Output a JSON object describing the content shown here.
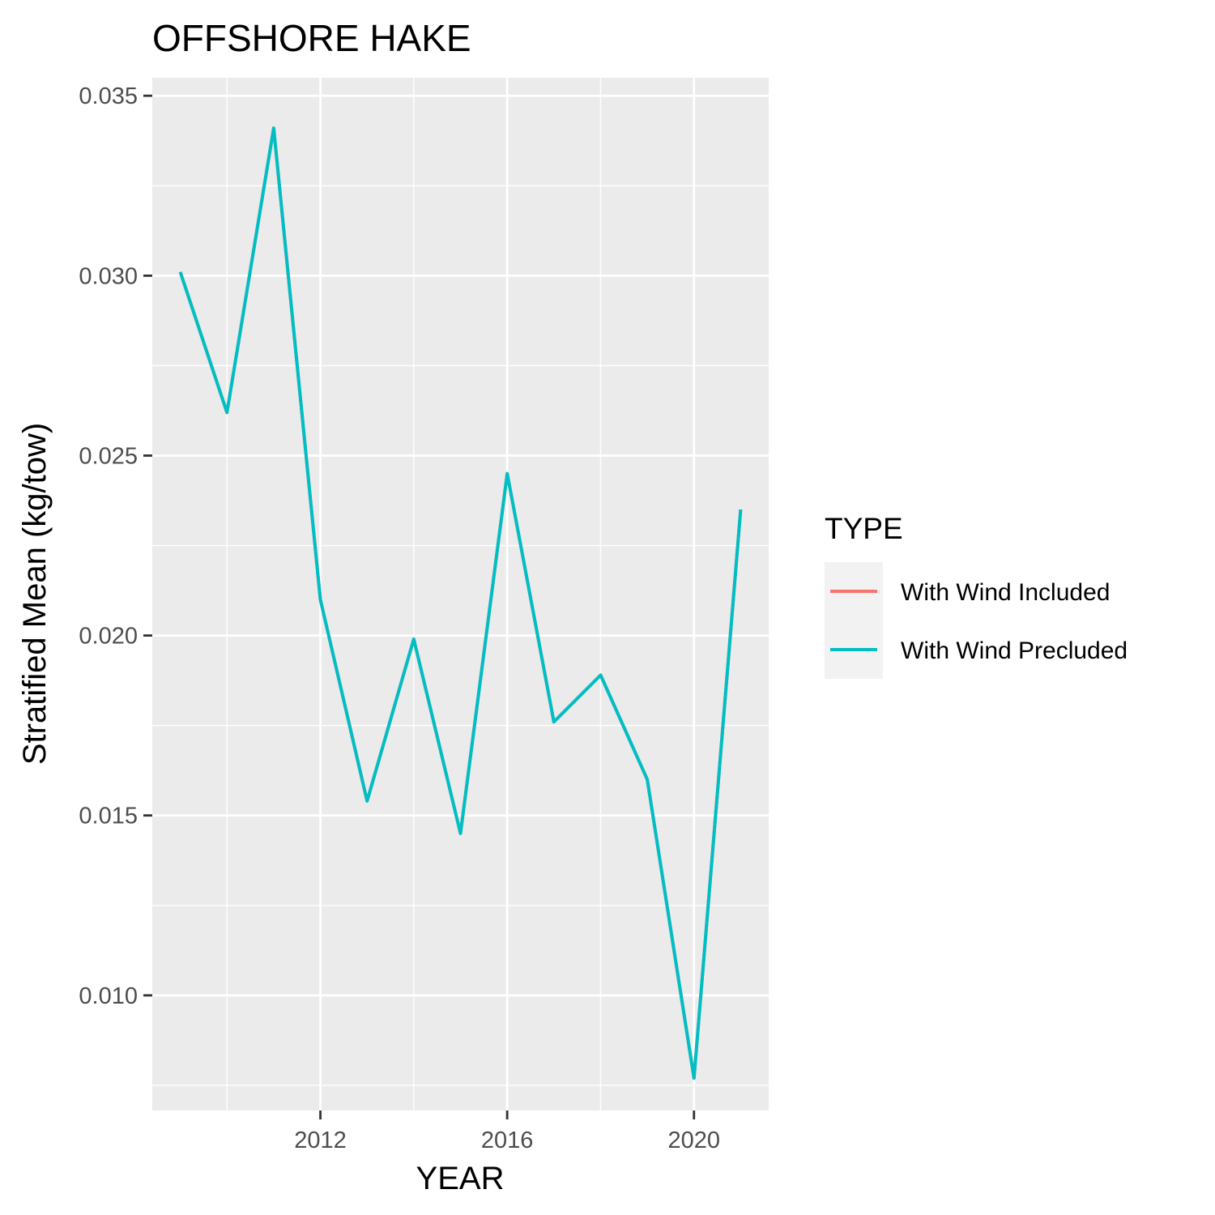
{
  "chart_data": {
    "type": "line",
    "title": "OFFSHORE HAKE",
    "xlabel": "YEAR",
    "ylabel": "Stratified Mean (kg/tow)",
    "xlim": [
      2008.4,
      2021.6
    ],
    "ylim": [
      0.0068,
      0.0355
    ],
    "x_ticks": [
      2012,
      2016,
      2020
    ],
    "x_tick_labels": [
      "2012",
      "2016",
      "2020"
    ],
    "y_ticks": [
      0.01,
      0.015,
      0.02,
      0.025,
      0.03,
      0.035
    ],
    "y_tick_labels": [
      "0.010",
      "0.015",
      "0.020",
      "0.025",
      "0.030",
      "0.035"
    ],
    "grid": true,
    "legend": {
      "title": "TYPE",
      "position": "right",
      "entries": [
        {
          "label": "With Wind Included",
          "color": "#F8766D"
        },
        {
          "label": "With Wind Precluded",
          "color": "#00BFC4"
        }
      ]
    },
    "series": [
      {
        "name": "With Wind Included",
        "color": "#F8766D",
        "x": [
          2009,
          2010,
          2011,
          2012,
          2013,
          2014,
          2015,
          2016,
          2017,
          2018,
          2019,
          2020,
          2021
        ],
        "values": [
          0.0301,
          0.0262,
          0.0341,
          0.021,
          0.0154,
          0.0199,
          0.0145,
          0.0245,
          0.0176,
          0.0189,
          0.016,
          0.0077,
          0.0235
        ]
      },
      {
        "name": "With Wind Precluded",
        "color": "#00BFC4",
        "x": [
          2009,
          2010,
          2011,
          2012,
          2013,
          2014,
          2015,
          2016,
          2017,
          2018,
          2019,
          2020,
          2021
        ],
        "values": [
          0.0301,
          0.0262,
          0.0341,
          0.021,
          0.0154,
          0.0199,
          0.0145,
          0.0245,
          0.0176,
          0.0189,
          0.016,
          0.0077,
          0.0235
        ]
      }
    ]
  }
}
